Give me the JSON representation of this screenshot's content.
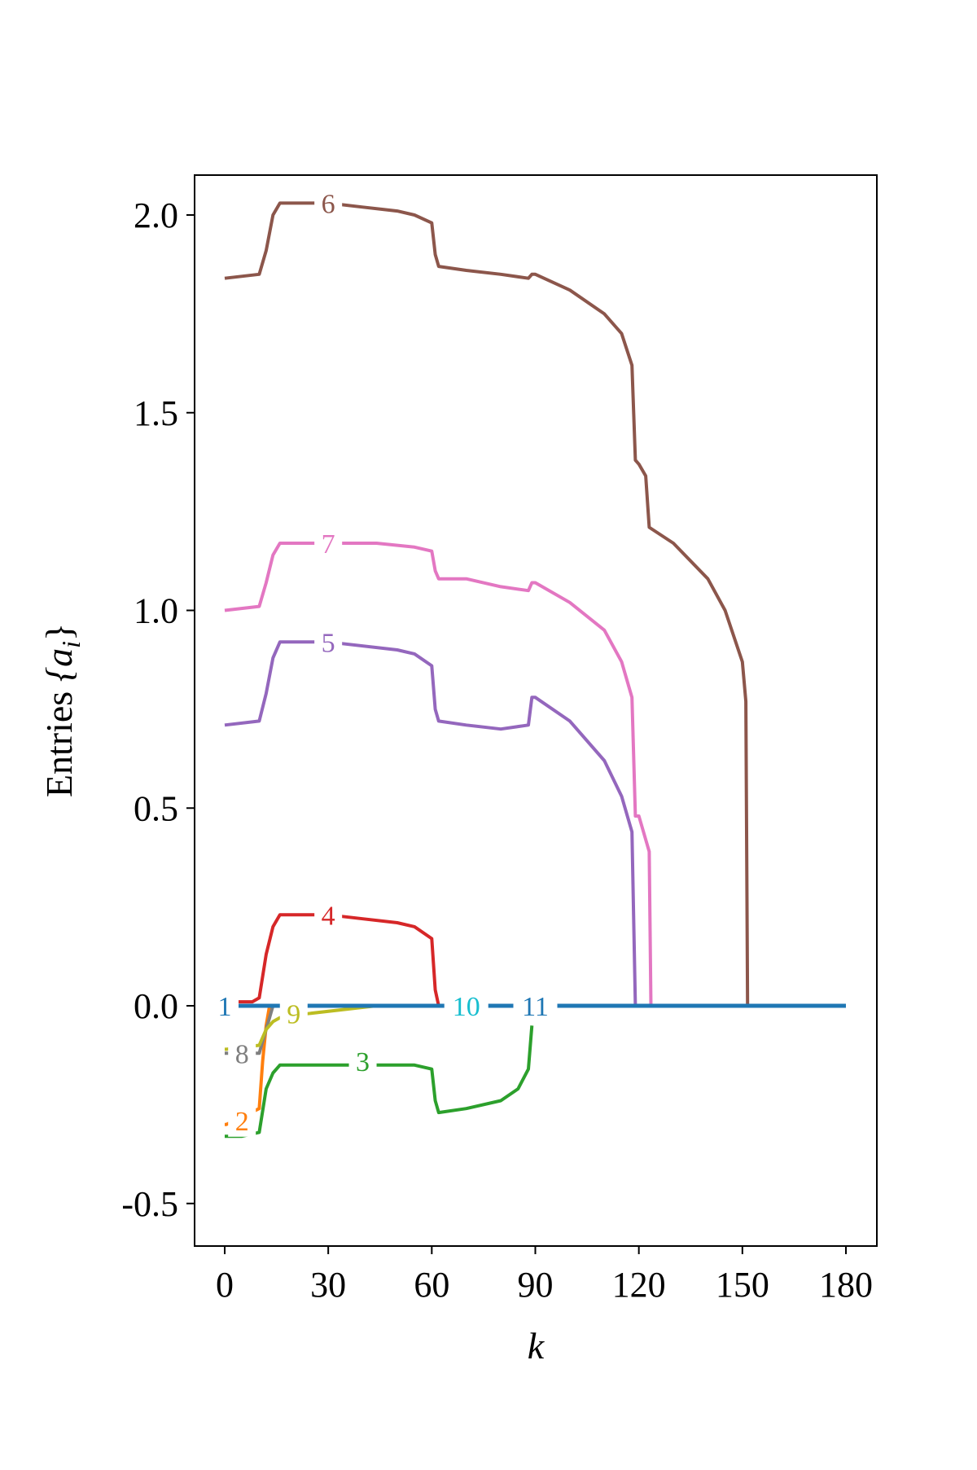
{
  "chart_data": {
    "type": "line",
    "title": "",
    "xlabel": "k",
    "ylabel": "Entries {a_i}",
    "ylabel_main": "Entries ",
    "ylabel_math": "{a",
    "ylabel_sub": "i",
    "ylabel_close": "}",
    "xlim": [
      -15,
      317
    ],
    "ylim": [
      -0.6,
      2.1
    ],
    "xticks": [
      0,
      30,
      60,
      90,
      120,
      150,
      180
    ],
    "xtick_labels": [
      "0",
      "30",
      "60",
      "90",
      "120",
      "150",
      "180"
    ],
    "yticks": [
      -0.5,
      0.0,
      0.5,
      1.0,
      1.5,
      2.0
    ],
    "ytick_labels": [
      "-0.5",
      "0.0",
      "0.5",
      "1.0",
      "1.5",
      "2.0"
    ],
    "grid": false,
    "legend": "none",
    "series": [
      {
        "name": "6",
        "color": "#8c564b",
        "label_at": [
          30,
          2.03
        ],
        "x": [
          0,
          10,
          12,
          14,
          16,
          30,
          40,
          50,
          55,
          60,
          61,
          62,
          70,
          80,
          88,
          89,
          90,
          100,
          110,
          115,
          118,
          119,
          120,
          122,
          123,
          130,
          140,
          145,
          150,
          151,
          151.5
        ],
        "y": [
          1.84,
          1.85,
          1.91,
          2.0,
          2.03,
          2.03,
          2.02,
          2.01,
          2.0,
          1.98,
          1.9,
          1.87,
          1.86,
          1.85,
          1.84,
          1.85,
          1.85,
          1.81,
          1.75,
          1.7,
          1.62,
          1.38,
          1.37,
          1.34,
          1.21,
          1.17,
          1.08,
          1.0,
          0.87,
          0.77,
          0.0
        ]
      },
      {
        "name": "7",
        "color": "#e377c2",
        "label_at": [
          30,
          1.17
        ],
        "x": [
          0,
          10,
          12,
          14,
          16,
          30,
          44,
          55,
          60,
          61,
          62,
          70,
          80,
          88,
          89,
          90,
          100,
          110,
          115,
          118,
          119,
          120,
          123,
          123.5
        ],
        "y": [
          1.0,
          1.01,
          1.07,
          1.14,
          1.17,
          1.17,
          1.17,
          1.16,
          1.15,
          1.1,
          1.08,
          1.08,
          1.06,
          1.05,
          1.07,
          1.07,
          1.02,
          0.95,
          0.87,
          0.78,
          0.48,
          0.48,
          0.39,
          0.0
        ]
      },
      {
        "name": "5",
        "color": "#9467bd",
        "label_at": [
          30,
          0.92
        ],
        "x": [
          0,
          10,
          12,
          14,
          16,
          30,
          50,
          55,
          60,
          61,
          62,
          70,
          80,
          88,
          89,
          90,
          100,
          110,
          115,
          118,
          119
        ],
        "y": [
          0.71,
          0.72,
          0.79,
          0.88,
          0.92,
          0.92,
          0.9,
          0.89,
          0.86,
          0.75,
          0.72,
          0.71,
          0.7,
          0.71,
          0.78,
          0.78,
          0.72,
          0.62,
          0.53,
          0.44,
          0.0
        ]
      },
      {
        "name": "4",
        "color": "#d62728",
        "label_at": [
          30,
          0.23
        ],
        "x": [
          4,
          8,
          10,
          12,
          14,
          16,
          30,
          40,
          50,
          55,
          60,
          61,
          62
        ],
        "y": [
          0.01,
          0.01,
          0.02,
          0.13,
          0.2,
          0.23,
          0.23,
          0.22,
          0.21,
          0.2,
          0.17,
          0.04,
          0.0
        ]
      },
      {
        "name": "3",
        "color": "#2ca02c",
        "label_at": [
          40,
          -0.14
        ],
        "x": [
          0,
          5,
          10,
          12,
          14,
          16,
          30,
          50,
          55,
          60,
          61,
          62,
          70,
          80,
          85,
          88,
          89
        ],
        "y": [
          -0.33,
          -0.33,
          -0.32,
          -0.21,
          -0.17,
          -0.15,
          -0.15,
          -0.15,
          -0.15,
          -0.16,
          -0.24,
          -0.27,
          -0.26,
          -0.24,
          -0.21,
          -0.16,
          -0.05
        ]
      },
      {
        "name": "2",
        "color": "#ff7f0e",
        "label_at": [
          5,
          -0.29
        ],
        "x": [
          0,
          0.5,
          10,
          11,
          12,
          13,
          14
        ],
        "y": [
          -0.3,
          -0.3,
          -0.26,
          -0.14,
          -0.05,
          0.0,
          0.0
        ]
      },
      {
        "name": "8",
        "color": "#7f7f7f",
        "label_at": [
          5,
          -0.12
        ],
        "x": [
          0,
          0.5,
          10,
          11,
          12,
          13,
          14
        ],
        "y": [
          -0.12,
          -0.12,
          -0.12,
          -0.09,
          -0.06,
          -0.03,
          0.0
        ]
      },
      {
        "name": "9",
        "color": "#bcbd22",
        "label_at": [
          20,
          -0.02
        ],
        "x": [
          0,
          0.5,
          10,
          12,
          14,
          16,
          24,
          44
        ],
        "y": [
          -0.11,
          -0.11,
          -0.1,
          -0.06,
          -0.04,
          -0.03,
          -0.02,
          0.0
        ]
      },
      {
        "name": "10",
        "color": "#17becf",
        "label_at": [
          70,
          0.0
        ],
        "x": [],
        "y": []
      },
      {
        "name": "11",
        "color": "#1f77b4",
        "label_at": [
          90,
          0.0
        ],
        "x": [],
        "y": []
      },
      {
        "name": "1",
        "color": "#1f77b4",
        "label_at": [
          0,
          0.0
        ],
        "x": [
          4,
          180
        ],
        "y": [
          0.0,
          0.0
        ]
      }
    ]
  }
}
